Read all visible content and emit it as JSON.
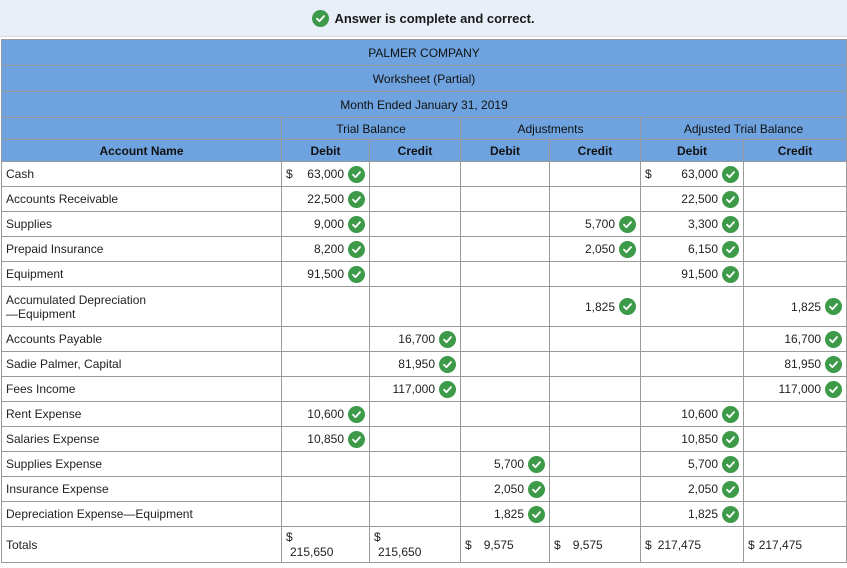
{
  "banner": {
    "message": "Answer is complete and correct.",
    "icon": "check-circle-icon"
  },
  "header": {
    "company": "PALMER COMPANY",
    "report": "Worksheet (Partial)",
    "period": "Month Ended January 31, 2019",
    "groups": {
      "trial_balance": "Trial Balance",
      "adjustments": "Adjustments",
      "adjusted_trial_balance": "Adjusted Trial Balance"
    },
    "columns": {
      "account": "Account Name",
      "debit": "Debit",
      "credit": "Credit"
    }
  },
  "rows": [
    {
      "account": "Cash",
      "tb_debit": "63,000",
      "tb_credit": "",
      "adj_debit": "",
      "adj_credit": "",
      "atb_debit": "63,000",
      "atb_credit": ""
    },
    {
      "account": "Accounts Receivable",
      "tb_debit": "22,500",
      "tb_credit": "",
      "adj_debit": "",
      "adj_credit": "",
      "atb_debit": "22,500",
      "atb_credit": ""
    },
    {
      "account": "Supplies",
      "tb_debit": "9,000",
      "tb_credit": "",
      "adj_debit": "",
      "adj_credit": "5,700",
      "atb_debit": "3,300",
      "atb_credit": ""
    },
    {
      "account": "Prepaid Insurance",
      "tb_debit": "8,200",
      "tb_credit": "",
      "adj_debit": "",
      "adj_credit": "2,050",
      "atb_debit": "6,150",
      "atb_credit": ""
    },
    {
      "account": "Equipment",
      "tb_debit": "91,500",
      "tb_credit": "",
      "adj_debit": "",
      "adj_credit": "",
      "atb_debit": "91,500",
      "atb_credit": ""
    },
    {
      "account": "Accumulated Depreciation",
      "account2": "—Equipment",
      "tb_debit": "",
      "tb_credit": "",
      "adj_debit": "",
      "adj_credit": "1,825",
      "atb_debit": "",
      "atb_credit": "1,825"
    },
    {
      "account": "Accounts Payable",
      "tb_debit": "",
      "tb_credit": "16,700",
      "adj_debit": "",
      "adj_credit": "",
      "atb_debit": "",
      "atb_credit": "16,700"
    },
    {
      "account": "Sadie Palmer, Capital",
      "tb_debit": "",
      "tb_credit": "81,950",
      "adj_debit": "",
      "adj_credit": "",
      "atb_debit": "",
      "atb_credit": "81,950"
    },
    {
      "account": "Fees Income",
      "tb_debit": "",
      "tb_credit": "117,000",
      "adj_debit": "",
      "adj_credit": "",
      "atb_debit": "",
      "atb_credit": "117,000"
    },
    {
      "account": "Rent Expense",
      "tb_debit": "10,600",
      "tb_credit": "",
      "adj_debit": "",
      "adj_credit": "",
      "atb_debit": "10,600",
      "atb_credit": ""
    },
    {
      "account": "Salaries Expense",
      "tb_debit": "10,850",
      "tb_credit": "",
      "adj_debit": "",
      "adj_credit": "",
      "atb_debit": "10,850",
      "atb_credit": ""
    },
    {
      "account": "Supplies Expense",
      "tb_debit": "",
      "tb_credit": "",
      "adj_debit": "5,700",
      "adj_credit": "",
      "atb_debit": "5,700",
      "atb_credit": ""
    },
    {
      "account": "Insurance Expense",
      "tb_debit": "",
      "tb_credit": "",
      "adj_debit": "2,050",
      "adj_credit": "",
      "atb_debit": "2,050",
      "atb_credit": ""
    },
    {
      "account": "Depreciation Expense—Equipment",
      "tb_debit": "",
      "tb_credit": "",
      "adj_debit": "1,825",
      "adj_credit": "",
      "atb_debit": "1,825",
      "atb_credit": ""
    }
  ],
  "dollar_sign": "$",
  "totals": {
    "label": "Totals",
    "tb_debit": "215,650",
    "tb_credit": "215,650",
    "adj_debit": "9,575",
    "adj_credit": "9,575",
    "atb_debit": "217,475",
    "atb_credit": "217,475"
  },
  "colors": {
    "header": "#6ea3df",
    "check": "#3c9a48",
    "banner": "#e9eff8"
  }
}
